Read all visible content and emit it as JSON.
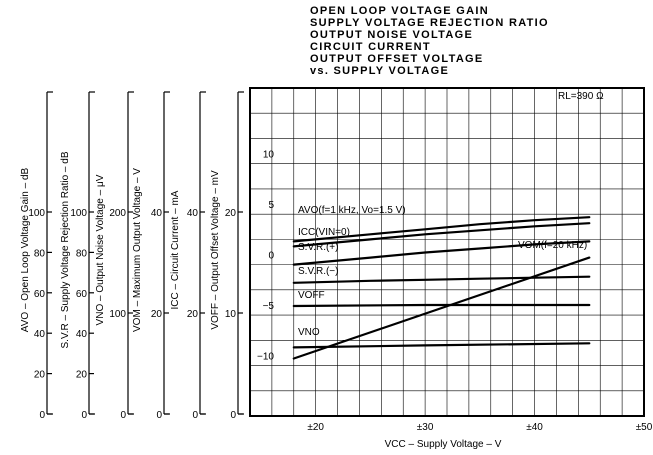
{
  "chart_data": {
    "type": "line",
    "title_lines": [
      "OPEN LOOP VOLTAGE GAIN",
      "SUPPLY VOLTAGE REJECTION RATIO",
      "OUTPUT NOISE VOLTAGE",
      "CIRCUIT CURRENT",
      "OUTPUT OFFSET VOLTAGE",
      "vs. SUPPLY VOLTAGE"
    ],
    "xlabel": "VCC – Supply Voltage – V",
    "xlim": [
      14,
      50
    ],
    "x_ticks": [
      {
        "value": 20,
        "label": "±20"
      },
      {
        "value": 30,
        "label": "±30"
      },
      {
        "value": 40,
        "label": "±40"
      },
      {
        "value": 50,
        "label": "±50"
      }
    ],
    "ylim": [
      -16,
      16.5
    ],
    "y_ticks": [
      10,
      5,
      0,
      -5,
      -10
    ],
    "grid": true,
    "corner_note": "RL=390 Ω",
    "left_axes": [
      {
        "label": "AVO – Open Loop Voltage Gain – dB",
        "ticks": [
          "100",
          "80",
          "60",
          "40",
          "20",
          "0"
        ]
      },
      {
        "label": "S.V.R – Supply Voltage Rejection Ratio – dB",
        "ticks": [
          "100",
          "80",
          "60",
          "40",
          "20",
          "0"
        ]
      },
      {
        "label": "VNO – Output Noise Voltage – μV",
        "ticks": [
          "200",
          "100",
          "0"
        ]
      },
      {
        "label": "VOM – Maximum Output Voltage – V",
        "ticks": [
          "40",
          "20",
          "0"
        ]
      },
      {
        "label": "ICC – Circuit Current – mA",
        "ticks": [
          "40",
          "20",
          "0"
        ]
      },
      {
        "label": "VOFF – Output Offset Voltage – mV",
        "ticks": [
          "20",
          "10",
          "0"
        ]
      }
    ],
    "series": [
      {
        "name": "AVO(f=1 kHz, Vo=1.5 V)",
        "x": [
          18,
          25,
          30,
          35,
          40,
          45
        ],
        "y": [
          1.3,
          2.0,
          2.5,
          3.0,
          3.4,
          3.7
        ]
      },
      {
        "name": "ICC(VIN=0)",
        "x": [
          18,
          25,
          30,
          35,
          40,
          45
        ],
        "y": [
          0.8,
          1.5,
          2.0,
          2.4,
          2.8,
          3.1
        ]
      },
      {
        "name": "S.V.R.(+)",
        "x": [
          18,
          25,
          30,
          35,
          40,
          45
        ],
        "y": [
          -1.0,
          -0.3,
          0.2,
          0.6,
          1.0,
          1.3
        ]
      },
      {
        "name": "S.V.R.(−)",
        "x": [
          18,
          25,
          30,
          35,
          40,
          45
        ],
        "y": [
          -2.8,
          -2.6,
          -2.5,
          -2.4,
          -2.3,
          -2.2
        ]
      },
      {
        "name": "VOFF",
        "x": [
          18,
          30,
          45
        ],
        "y": [
          -5.1,
          -5.0,
          -5.0
        ]
      },
      {
        "name": "VNO",
        "x": [
          18,
          30,
          45
        ],
        "y": [
          -9.2,
          -9.0,
          -8.8
        ]
      },
      {
        "name": "VOM(f=20 kHz)",
        "x": [
          18,
          45
        ],
        "y": [
          -10.3,
          -0.3
        ]
      }
    ]
  }
}
